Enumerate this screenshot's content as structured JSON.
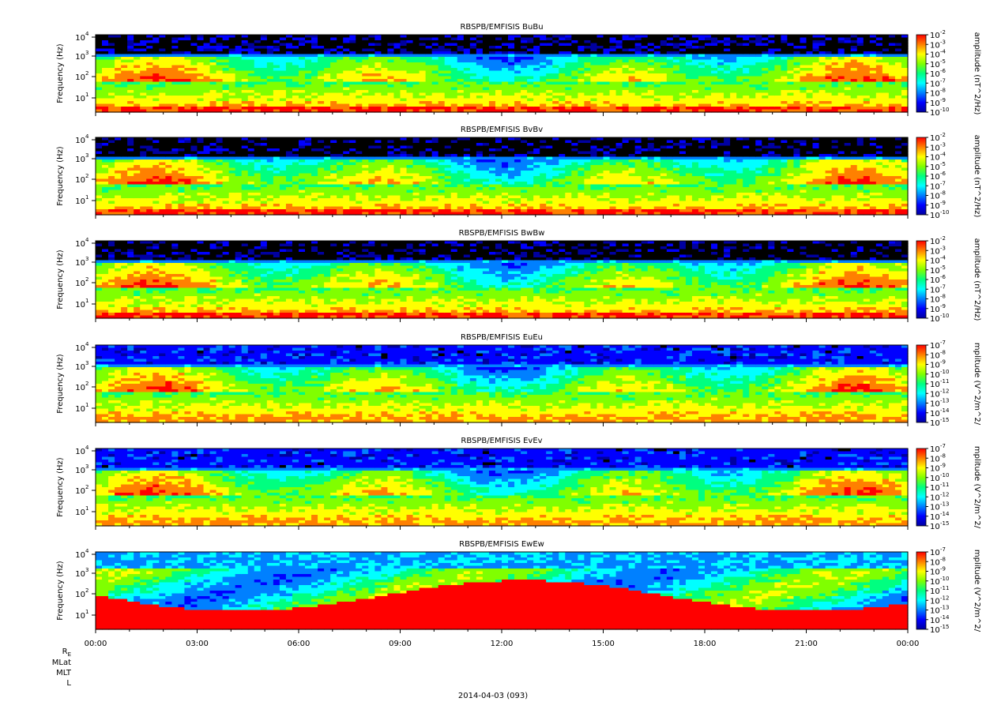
{
  "chart_data": [
    {
      "type": "heatmap",
      "title": "RBSPB/EMFISIS  BuBu",
      "ylabel": "Frequency (Hz)",
      "yscale": "log",
      "yticks": [
        {
          "exp": "1"
        },
        {
          "exp": "2"
        },
        {
          "exp": "3"
        },
        {
          "exp": "4"
        }
      ],
      "colorbar_label": "amplitude (nT^2/Hz)",
      "colorbar_ticks": [
        "-2",
        "-3",
        "-4",
        "-5",
        "-6",
        "-7",
        "-8",
        "-9",
        "-10"
      ]
    },
    {
      "type": "heatmap",
      "title": "RBSPB/EMFISIS  BvBv",
      "ylabel": "Frequency (Hz)",
      "yscale": "log",
      "yticks": [
        {
          "exp": "1"
        },
        {
          "exp": "2"
        },
        {
          "exp": "3"
        },
        {
          "exp": "4"
        }
      ],
      "colorbar_label": "amplitude (nT^2/Hz)",
      "colorbar_ticks": [
        "-2",
        "-3",
        "-4",
        "-5",
        "-6",
        "-7",
        "-8",
        "-9",
        "-10"
      ]
    },
    {
      "type": "heatmap",
      "title": "RBSPB/EMFISIS  BwBw",
      "ylabel": "Frequency (Hz)",
      "yscale": "log",
      "yticks": [
        {
          "exp": "1"
        },
        {
          "exp": "2"
        },
        {
          "exp": "3"
        },
        {
          "exp": "4"
        }
      ],
      "colorbar_label": "amplitude (nT^2/Hz)",
      "colorbar_ticks": [
        "-2",
        "-3",
        "-4",
        "-5",
        "-6",
        "-7",
        "-8",
        "-9",
        "-10"
      ]
    },
    {
      "type": "heatmap",
      "title": "RBSPB/EMFISIS  EuEu",
      "ylabel": "Frequency (Hz)",
      "yscale": "log",
      "yticks": [
        {
          "exp": "1"
        },
        {
          "exp": "2"
        },
        {
          "exp": "3"
        },
        {
          "exp": "4"
        }
      ],
      "colorbar_label": "mplitude (V^2/m^2/",
      "colorbar_ticks": [
        "-7",
        "-8",
        "-9",
        "-10",
        "-11",
        "-12",
        "-13",
        "-14",
        "-15"
      ]
    },
    {
      "type": "heatmap",
      "title": "RBSPB/EMFISIS  EvEv",
      "ylabel": "Frequency (Hz)",
      "yscale": "log",
      "yticks": [
        {
          "exp": "1"
        },
        {
          "exp": "2"
        },
        {
          "exp": "3"
        },
        {
          "exp": "4"
        }
      ],
      "colorbar_label": "mplitude (V^2/m^2/",
      "colorbar_ticks": [
        "-7",
        "-8",
        "-9",
        "-10",
        "-11",
        "-12",
        "-13",
        "-14",
        "-15"
      ]
    },
    {
      "type": "heatmap",
      "title": "RBSPB/EMFISIS  EwEw",
      "ylabel": "Frequency (Hz)",
      "yscale": "log",
      "yticks": [
        {
          "exp": "1"
        },
        {
          "exp": "2"
        },
        {
          "exp": "3"
        },
        {
          "exp": "4"
        }
      ],
      "colorbar_label": "mplitude (V^2/m^2/",
      "colorbar_ticks": [
        "-7",
        "-8",
        "-9",
        "-10",
        "-11",
        "-12",
        "-13",
        "-14",
        "-15"
      ]
    }
  ],
  "x_axis": {
    "tick_labels": [
      "00:00",
      "03:00",
      "06:00",
      "09:00",
      "12:00",
      "15:00",
      "18:00",
      "21:00",
      "00:00"
    ],
    "date_label": "2014-04-03 (093)"
  },
  "ephemeris_labels": {
    "re": "R",
    "re_sub": "E",
    "mlat": "MLat",
    "mlt": "MLT",
    "l": "L"
  },
  "common": {
    "log_base": "10"
  },
  "colors": {
    "colormap": [
      "#0000a0",
      "#0000ff",
      "#0080ff",
      "#00ffff",
      "#00ff80",
      "#80ff00",
      "#ffff00",
      "#ff8000",
      "#ff0000"
    ],
    "background": "#000000"
  }
}
